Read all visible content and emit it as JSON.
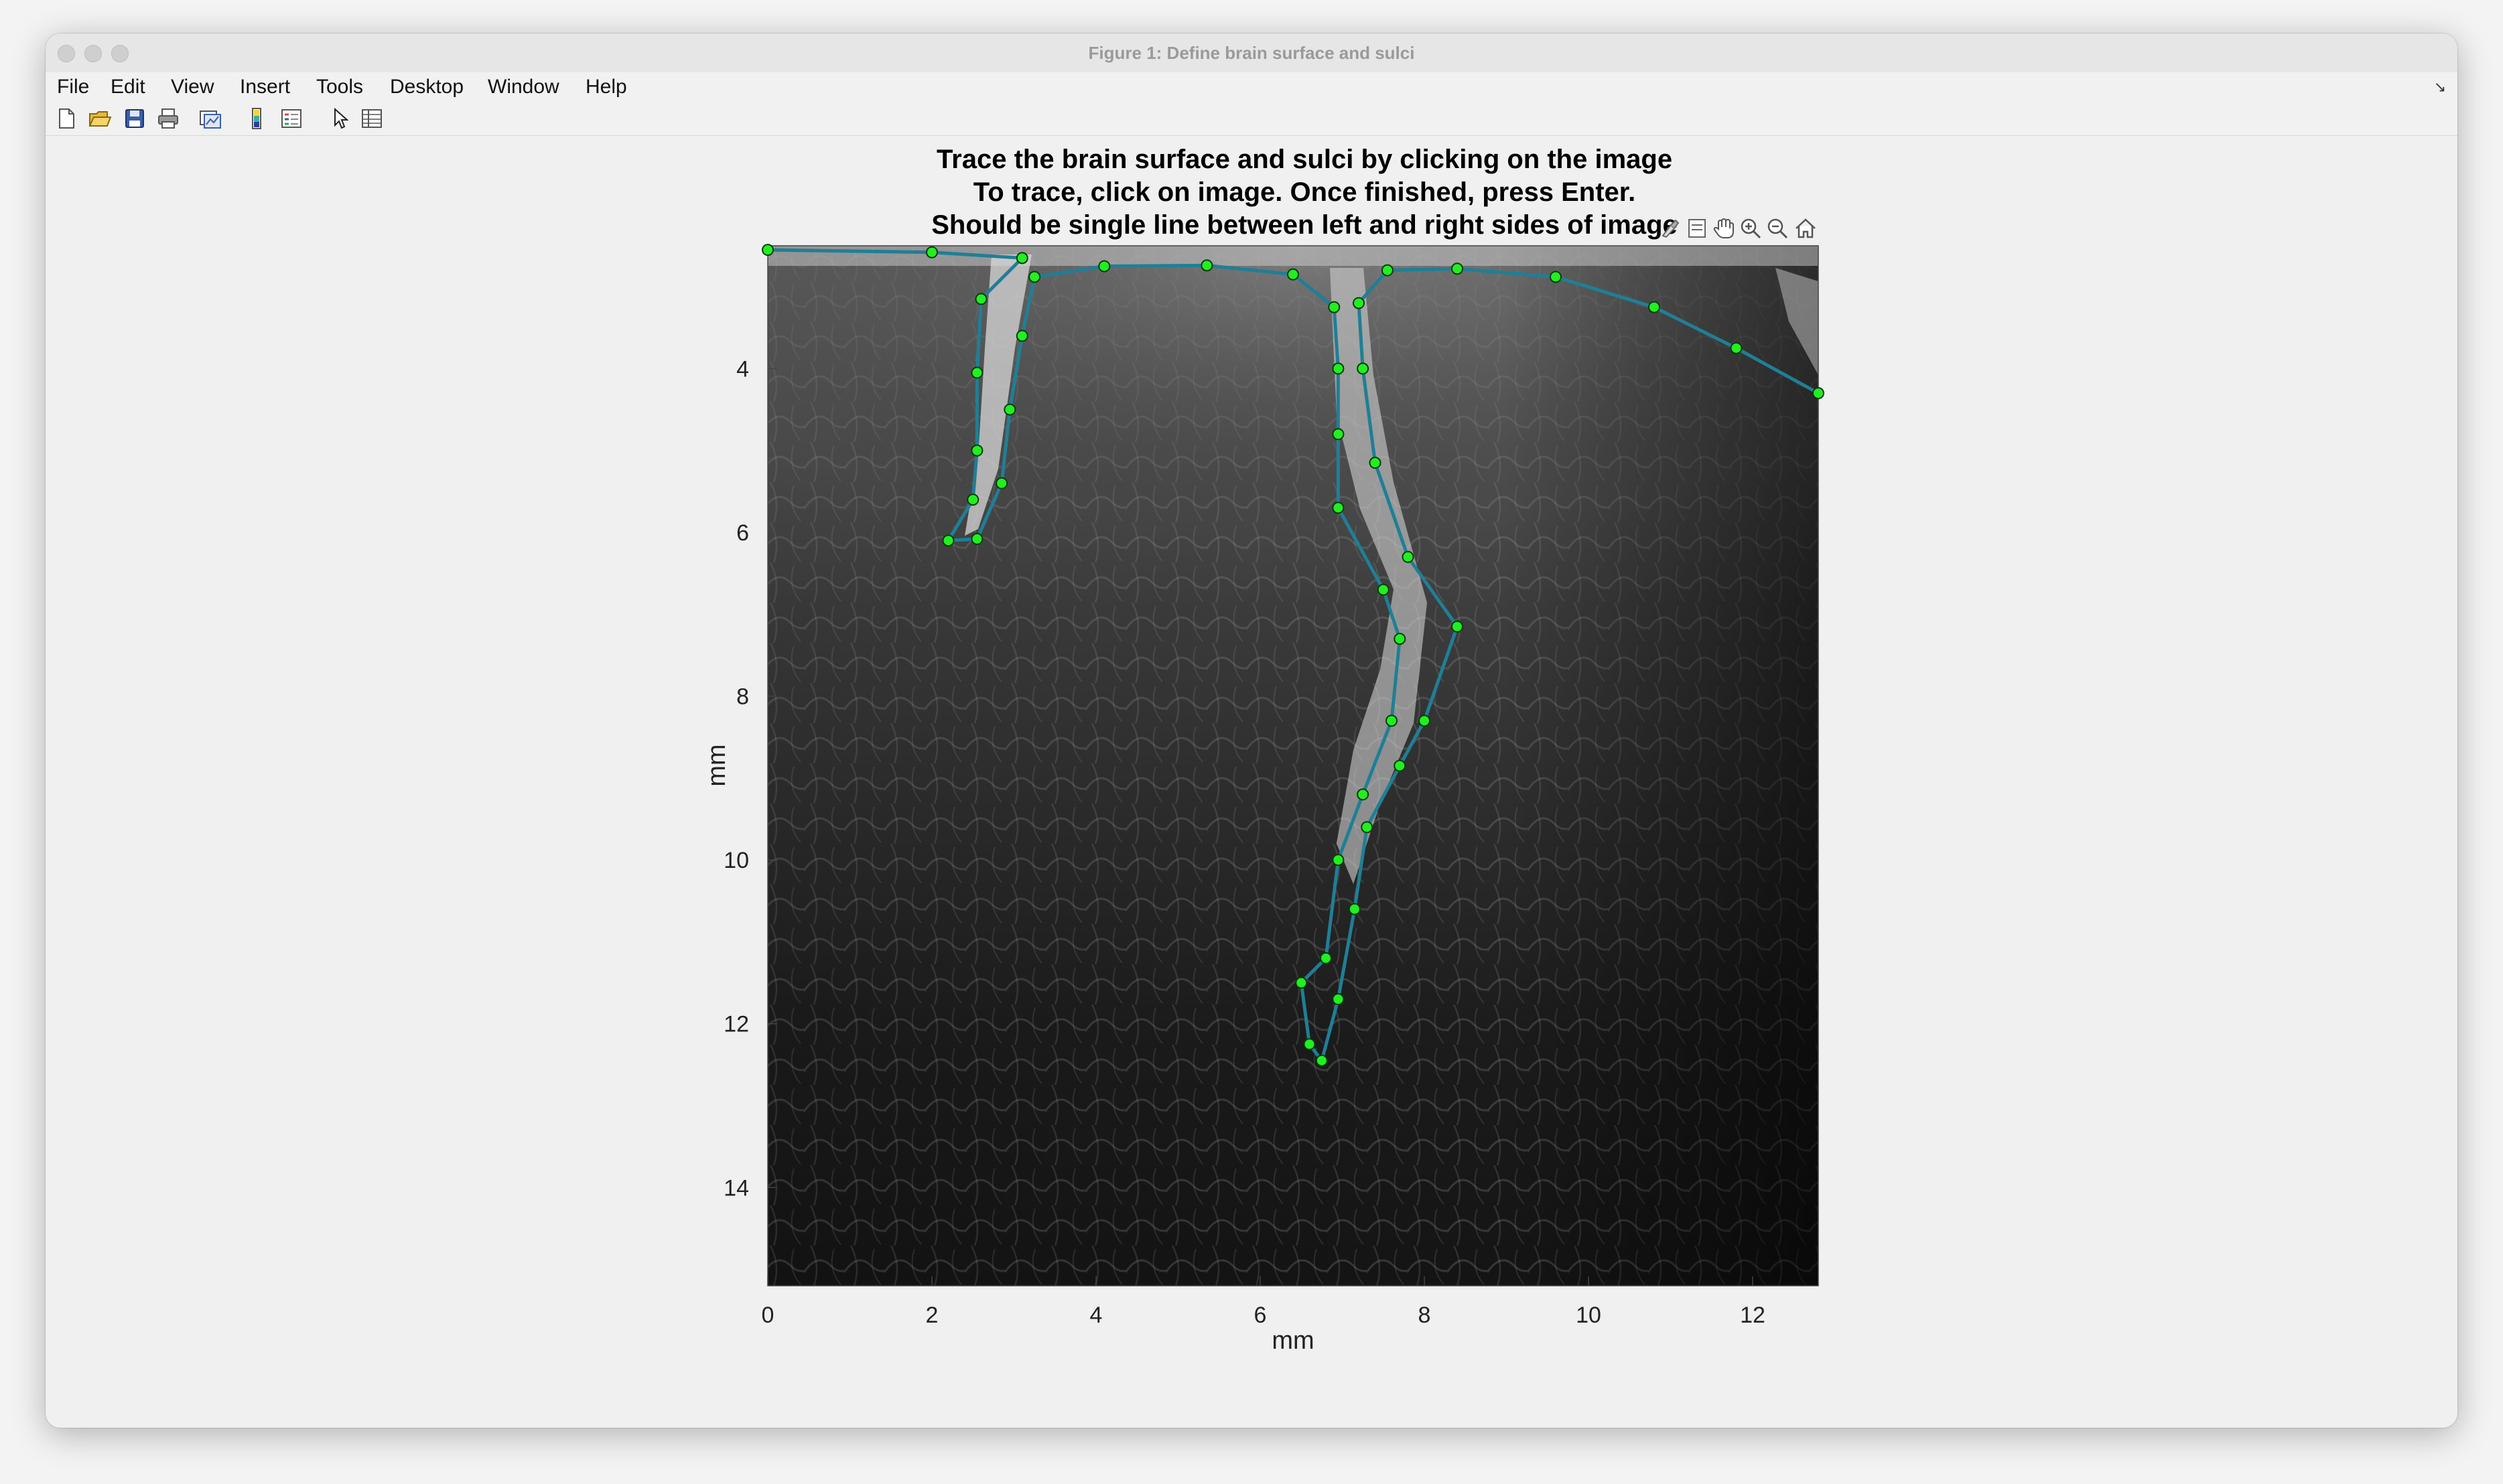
{
  "window": {
    "title": "Figure 1: Define brain surface and sulci"
  },
  "menu": [
    "File",
    "Edit",
    "View",
    "Insert",
    "Tools",
    "Desktop",
    "Window",
    "Help"
  ],
  "toolbar": {
    "icons": [
      "new-figure-icon",
      "open-file-icon",
      "save-icon",
      "print-icon",
      "link-plot-icon",
      "colorbar-icon",
      "legend-icon",
      "edit-plot-pointer-icon",
      "property-inspector-icon"
    ]
  },
  "axes_toolbar": {
    "icons": [
      "data-brush-icon",
      "datatip-icon",
      "pan-hand-icon",
      "zoom-in-icon",
      "zoom-out-icon",
      "restore-view-home-icon"
    ]
  },
  "chart_data": {
    "type": "scatter",
    "title": [
      "Trace the brain surface and sulci by clicking on the image",
      "To trace, click on image. Once finished, press Enter.",
      "Should be single line between left and right sides of image"
    ],
    "xlabel": "mm",
    "ylabel": "mm",
    "xlim": [
      0,
      12.8
    ],
    "ylim": [
      15.2,
      2.5
    ],
    "xticks": [
      "0",
      "2",
      "4",
      "6",
      "8",
      "10",
      "12"
    ],
    "yticks": [
      "4",
      "6",
      "8",
      "10",
      "12",
      "14"
    ],
    "background": "grayscale microscopy image",
    "line_color": "#1f7f96",
    "marker_color": "#22ee22",
    "points": [
      [
        0.0,
        2.55
      ],
      [
        2.0,
        2.58
      ],
      [
        3.1,
        2.65
      ],
      [
        2.6,
        3.15
      ],
      [
        2.55,
        4.05
      ],
      [
        2.55,
        5.0
      ],
      [
        2.5,
        5.6
      ],
      [
        2.2,
        6.1
      ],
      [
        2.55,
        6.08
      ],
      [
        2.85,
        5.4
      ],
      [
        2.95,
        4.5
      ],
      [
        3.1,
        3.6
      ],
      [
        3.25,
        2.88
      ],
      [
        4.1,
        2.75
      ],
      [
        5.35,
        2.74
      ],
      [
        6.4,
        2.85
      ],
      [
        6.9,
        3.25
      ],
      [
        6.95,
        4.0
      ],
      [
        6.95,
        4.8
      ],
      [
        6.95,
        5.7
      ],
      [
        7.5,
        6.7
      ],
      [
        7.7,
        7.3
      ],
      [
        7.6,
        8.3
      ],
      [
        7.25,
        9.2
      ],
      [
        6.95,
        10.0
      ],
      [
        6.8,
        11.2
      ],
      [
        6.5,
        11.5
      ],
      [
        6.6,
        12.25
      ],
      [
        6.75,
        12.45
      ],
      [
        6.95,
        11.7
      ],
      [
        7.15,
        10.6
      ],
      [
        7.3,
        9.6
      ],
      [
        7.7,
        8.85
      ],
      [
        8.0,
        8.3
      ],
      [
        8.4,
        7.15
      ],
      [
        7.8,
        6.3
      ],
      [
        7.4,
        5.15
      ],
      [
        7.25,
        4.0
      ],
      [
        7.2,
        3.2
      ],
      [
        7.55,
        2.8
      ],
      [
        8.4,
        2.78
      ],
      [
        9.6,
        2.88
      ],
      [
        10.8,
        3.25
      ],
      [
        11.8,
        3.75
      ],
      [
        12.8,
        4.3
      ]
    ]
  }
}
